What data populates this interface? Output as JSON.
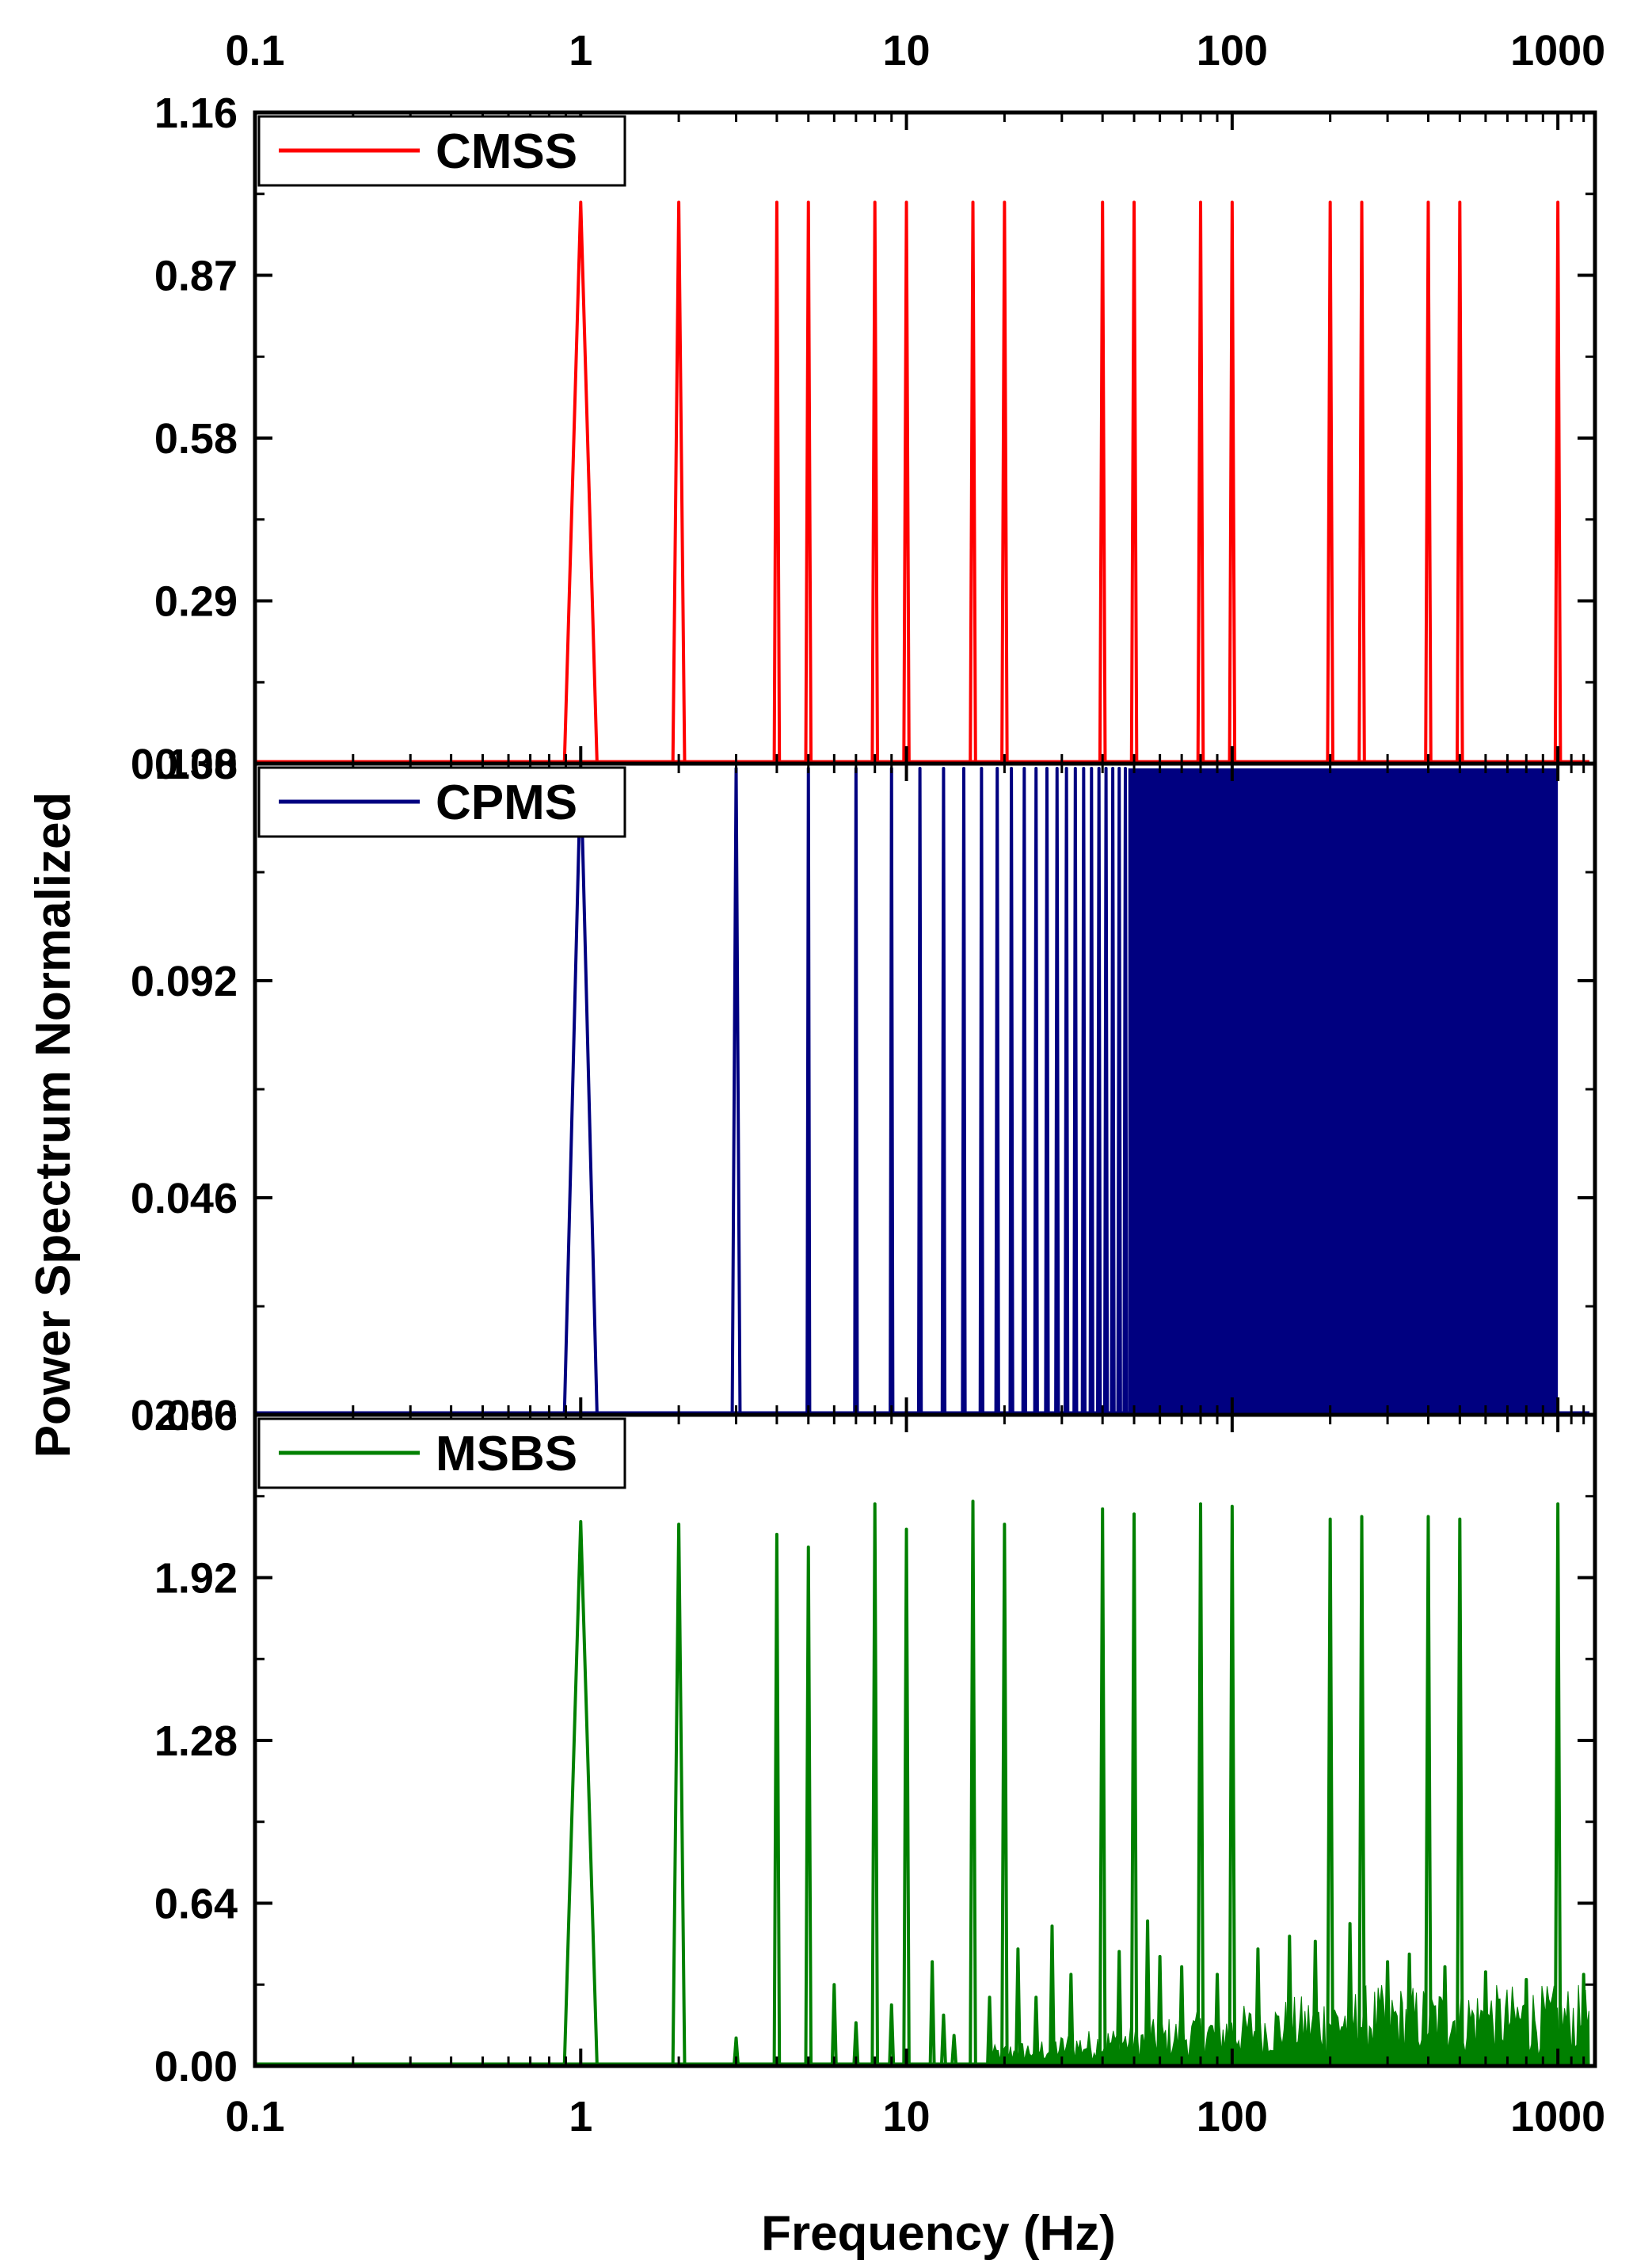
{
  "chart_data": {
    "type": "line",
    "xlabel": "Frequency (Hz)",
    "ylabel": "Power Spectrum Normalized",
    "x_scale": "log",
    "xlim": [
      0.1,
      1300
    ],
    "x_ticks": [
      "0.1",
      "1",
      "10",
      "100",
      "1000"
    ],
    "grid": false,
    "legend_position": "top-left",
    "panels": [
      {
        "series_name": "CMSS",
        "color": "#ff0000",
        "ylim": [
          0,
          1.16
        ],
        "y_ticks": [
          "0.00",
          "0.29",
          "0.58",
          "0.87",
          "1.16"
        ],
        "peaks": [
          {
            "f": 1,
            "p": 1.0
          },
          {
            "f": 2,
            "p": 1.0
          },
          {
            "f": 4,
            "p": 1.0
          },
          {
            "f": 5,
            "p": 1.0
          },
          {
            "f": 8,
            "p": 1.0
          },
          {
            "f": 10,
            "p": 1.0
          },
          {
            "f": 16,
            "p": 1.0
          },
          {
            "f": 20,
            "p": 1.0
          },
          {
            "f": 40,
            "p": 1.0
          },
          {
            "f": 50,
            "p": 1.0
          },
          {
            "f": 80,
            "p": 1.0
          },
          {
            "f": 100,
            "p": 1.0
          },
          {
            "f": 200,
            "p": 1.0
          },
          {
            "f": 250,
            "p": 1.0
          },
          {
            "f": 400,
            "p": 1.0
          },
          {
            "f": 500,
            "p": 1.0
          },
          {
            "f": 1000,
            "p": 1.0
          }
        ]
      },
      {
        "series_name": "CPMS",
        "color": "#000080",
        "ylim": [
          0,
          0.138
        ],
        "y_ticks": [
          "0.000",
          "0.046",
          "0.092",
          "0.138"
        ],
        "peak_value": 0.137,
        "peaks_odd_harmonics": {
          "start": 1,
          "step": 2,
          "end": 1000
        },
        "solid_fill_from": 48
      },
      {
        "series_name": "MSBS",
        "color": "#008000",
        "ylim": [
          0,
          2.56
        ],
        "y_ticks": [
          "0.00",
          "0.64",
          "1.28",
          "1.92",
          "2.56"
        ],
        "peaks": [
          {
            "f": 1,
            "p": 2.14
          },
          {
            "f": 2,
            "p": 2.13
          },
          {
            "f": 4,
            "p": 2.09
          },
          {
            "f": 5,
            "p": 2.04
          },
          {
            "f": 8,
            "p": 2.21
          },
          {
            "f": 10,
            "p": 2.11
          },
          {
            "f": 16,
            "p": 2.22
          },
          {
            "f": 20,
            "p": 2.13
          },
          {
            "f": 40,
            "p": 2.19
          },
          {
            "f": 50,
            "p": 2.17
          },
          {
            "f": 80,
            "p": 2.21
          },
          {
            "f": 100,
            "p": 2.2
          },
          {
            "f": 200,
            "p": 2.15
          },
          {
            "f": 250,
            "p": 2.16
          },
          {
            "f": 400,
            "p": 2.16
          },
          {
            "f": 500,
            "p": 2.15
          },
          {
            "f": 1000,
            "p": 2.21
          }
        ],
        "minor_peaks": [
          {
            "f": 3,
            "p": 0.11
          },
          {
            "f": 6,
            "p": 0.32
          },
          {
            "f": 7,
            "p": 0.17
          },
          {
            "f": 9,
            "p": 0.24
          },
          {
            "f": 12,
            "p": 0.41
          },
          {
            "f": 13,
            "p": 0.2
          },
          {
            "f": 14,
            "p": 0.12
          },
          {
            "f": 18,
            "p": 0.27
          },
          {
            "f": 22,
            "p": 0.46
          },
          {
            "f": 25,
            "p": 0.27
          },
          {
            "f": 28,
            "p": 0.55
          },
          {
            "f": 32,
            "p": 0.36
          },
          {
            "f": 45,
            "p": 0.45
          },
          {
            "f": 55,
            "p": 0.57
          },
          {
            "f": 60,
            "p": 0.43
          },
          {
            "f": 70,
            "p": 0.39
          },
          {
            "f": 90,
            "p": 0.36
          },
          {
            "f": 120,
            "p": 0.46
          },
          {
            "f": 150,
            "p": 0.51
          },
          {
            "f": 180,
            "p": 0.49
          },
          {
            "f": 230,
            "p": 0.56
          },
          {
            "f": 300,
            "p": 0.41
          },
          {
            "f": 350,
            "p": 0.44
          },
          {
            "f": 450,
            "p": 0.39
          },
          {
            "f": 600,
            "p": 0.37
          },
          {
            "f": 800,
            "p": 0.34
          },
          {
            "f": 1200,
            "p": 0.36
          }
        ],
        "noise_floor": {
          "start": 18,
          "end": 1250,
          "level": 0.2
        }
      }
    ]
  }
}
